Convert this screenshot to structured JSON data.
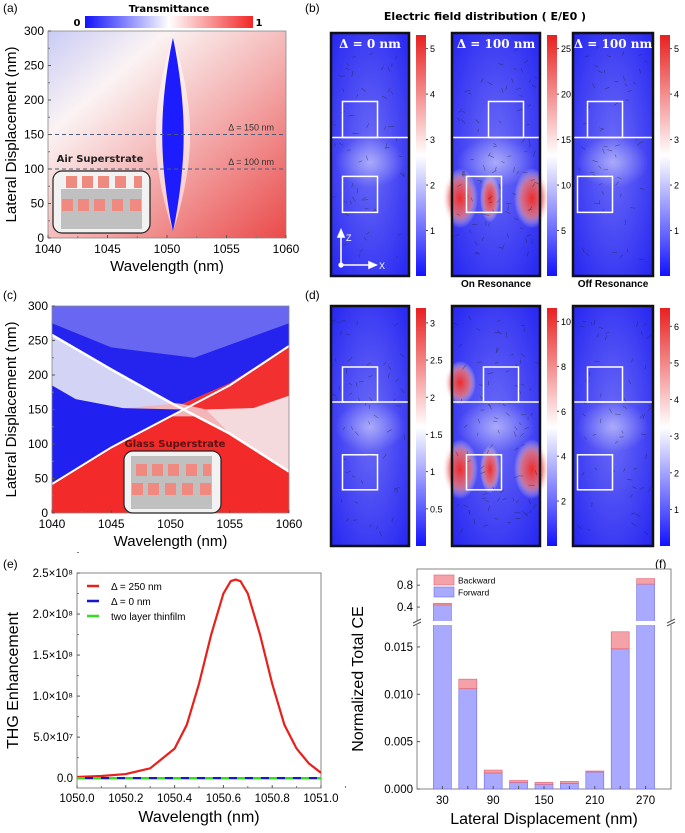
{
  "figure": {
    "panel_labels": [
      "(a)",
      "(b)",
      "(c)",
      "(d)",
      "(e)",
      "(f)"
    ],
    "colors": {
      "blue": "#1a1aff",
      "red": "#f03a3a",
      "white": "#ffffff",
      "pink_block": "#f08a80",
      "inset_gray": "#c0c0c0",
      "bar_forward": "#a9a9ff",
      "bar_backward": "#f4a2a8"
    }
  },
  "chart_data": [
    {
      "id": "a",
      "type": "heatmap",
      "title": "Transmittance",
      "colorbar": {
        "min_label": "0",
        "max_label": "1",
        "range": [
          0,
          1
        ]
      },
      "xlabel": "Wavelength (nm)",
      "ylabel": "Lateral Displacement (nm)",
      "xlim": [
        1040,
        1060
      ],
      "ylim": [
        0,
        300
      ],
      "xticks": [
        "1040",
        "1045",
        "1050",
        "1055",
        "1060"
      ],
      "yticks": [
        "0",
        "50",
        "100",
        "150",
        "200",
        "250",
        "300"
      ],
      "annotations": [
        {
          "text": "Δ = 150 nm",
          "y": 150,
          "style": "dashed-line"
        },
        {
          "text": "Δ = 100 nm",
          "y": 100,
          "style": "dashed-line"
        }
      ],
      "inset_label": "Air Superstrate",
      "resonance": {
        "center_nm": 1050.5,
        "y_range": [
          10,
          290
        ],
        "max_half_width_nm": 0.9,
        "widest_at": 150
      }
    },
    {
      "id": "b",
      "type": "heatmap",
      "title": "Electric field distribution ( E/E0 )",
      "axes_labels": {
        "z": "Z",
        "x": "X"
      },
      "maps": [
        {
          "label": "Δ = 0 nm",
          "caption": "",
          "colorbar_ticks": [
            "1",
            "2",
            "3",
            "4",
            "5"
          ],
          "colorbar_range": [
            0,
            5.3
          ]
        },
        {
          "label": "Δ = 100 nm",
          "caption": "On Resonance",
          "colorbar_ticks": [
            "5",
            "10",
            "15",
            "20",
            "25"
          ],
          "colorbar_range": [
            0,
            26.5
          ]
        },
        {
          "label": "Δ = 100 nm",
          "caption": "Off Resonance",
          "colorbar_ticks": [
            "1",
            "2",
            "3",
            "4",
            "5"
          ],
          "colorbar_range": [
            0,
            5.3
          ]
        }
      ]
    },
    {
      "id": "c",
      "type": "heatmap",
      "xlabel": "Wavelength (nm)",
      "ylabel": "Lateral Displacement (nm)",
      "xlim": [
        1040,
        1060
      ],
      "ylim": [
        0,
        300
      ],
      "xticks": [
        "1040",
        "1045",
        "1050",
        "1055",
        "1060"
      ],
      "yticks": [
        "0",
        "50",
        "100",
        "150",
        "200",
        "250",
        "300"
      ],
      "inset_label": "Glass Superstrate",
      "bands": [
        {
          "name": "upper-left to lower-right",
          "points": [
            [
              1040,
              258
            ],
            [
              1045,
              208
            ],
            [
              1050,
              160
            ],
            [
              1055,
              115
            ],
            [
              1060,
              60
            ]
          ]
        },
        {
          "name": "lower-left to upper-right",
          "points": [
            [
              1040,
              42
            ],
            [
              1045,
              95
            ],
            [
              1050,
              140
            ],
            [
              1055,
              185
            ],
            [
              1060,
              242
            ]
          ]
        }
      ]
    },
    {
      "id": "d",
      "type": "heatmap",
      "maps": [
        {
          "colorbar_ticks": [
            "0.5",
            "1",
            "1.5",
            "2",
            "2.5",
            "3"
          ],
          "colorbar_range": [
            0,
            3.2
          ]
        },
        {
          "colorbar_ticks": [
            "2",
            "4",
            "6",
            "8",
            "10"
          ],
          "colorbar_range": [
            0,
            10.6
          ]
        },
        {
          "colorbar_ticks": [
            "1",
            "2",
            "3",
            "4",
            "5",
            "6"
          ],
          "colorbar_range": [
            0,
            6.5
          ]
        }
      ]
    },
    {
      "id": "e",
      "type": "line",
      "xlabel": "Wavelength (nm)",
      "ylabel": "THG Enhancement",
      "xlim": [
        1050.0,
        1051.0
      ],
      "ylim": [
        -12000000.0,
        250000000.0
      ],
      "xticks": [
        "1050.0",
        "1050.2",
        "1050.4",
        "1050.6",
        "1050.8",
        "1051.0"
      ],
      "yticks": [
        {
          "value": 0,
          "label": "0.0"
        },
        {
          "value": 50000000.0,
          "label": "5.0×10⁷"
        },
        {
          "value": 100000000.0,
          "label": "1.0×10⁸"
        },
        {
          "value": 150000000.0,
          "label": "1.5×10⁸"
        },
        {
          "value": 200000000.0,
          "label": "2.0×10⁸"
        },
        {
          "value": 250000000.0,
          "label": "2.5×10⁸"
        }
      ],
      "legend_position": "top-left",
      "series": [
        {
          "name": "Δ = 250 nm",
          "color": "#e8201c",
          "style": "solid",
          "peak_x": 1050.65,
          "peak_y": 242000000.0,
          "fwhm_nm": 0.2,
          "x": [
            1050.0,
            1050.1,
            1050.2,
            1050.3,
            1050.4,
            1050.45,
            1050.5,
            1050.55,
            1050.6,
            1050.63,
            1050.65,
            1050.67,
            1050.7,
            1050.75,
            1050.8,
            1050.85,
            1050.9,
            1050.95,
            1051.0
          ],
          "y": [
            1500000.0,
            2600000.0,
            5000000.0,
            12000000.0,
            36000000.0,
            65000000.0,
            115000000.0,
            175000000.0,
            225000000.0,
            240000000.0,
            242000000.0,
            240000000.0,
            225000000.0,
            175000000.0,
            115000000.0,
            65000000.0,
            36000000.0,
            18000000.0,
            6500000.0
          ]
        },
        {
          "name": "Δ = 0 nm",
          "color": "#1515d0",
          "style": "dashed",
          "constant_y": 0
        },
        {
          "name": "two layer thinfilm",
          "color": "#33dd22",
          "style": "dashed",
          "constant_y": 0
        }
      ]
    },
    {
      "id": "f",
      "type": "bar",
      "stacked": true,
      "xlabel": "Lateral Displacement (nm)",
      "ylabel": "Normalized Total CE",
      "xticks": [
        "30",
        "90",
        "150",
        "210",
        "270"
      ],
      "categories": [
        30,
        60,
        90,
        120,
        150,
        180,
        210,
        240,
        270
      ],
      "y_lower": {
        "range": [
          0,
          0.017
        ],
        "ticks": [
          "0.000",
          "0.005",
          "0.010",
          "0.015"
        ]
      },
      "y_upper": {
        "range": [
          0.2,
          0.95
        ],
        "ticks": [
          "0.4",
          "0.8"
        ]
      },
      "axis_break": true,
      "legend_position": "top-left",
      "series": [
        {
          "name": "Forward",
          "color": "#a9a9ff",
          "values": [
            0.44,
            0.0106,
            0.0017,
            0.0007,
            0.0005,
            0.0006,
            0.0018,
            0.0148,
            0.82
          ]
        },
        {
          "name": "Backward",
          "color": "#f4a2a8",
          "values": [
            0.03,
            0.001,
            0.0003,
            0.0002,
            0.0002,
            0.0002,
            0.0001,
            0.0018,
            0.1
          ]
        }
      ]
    }
  ]
}
